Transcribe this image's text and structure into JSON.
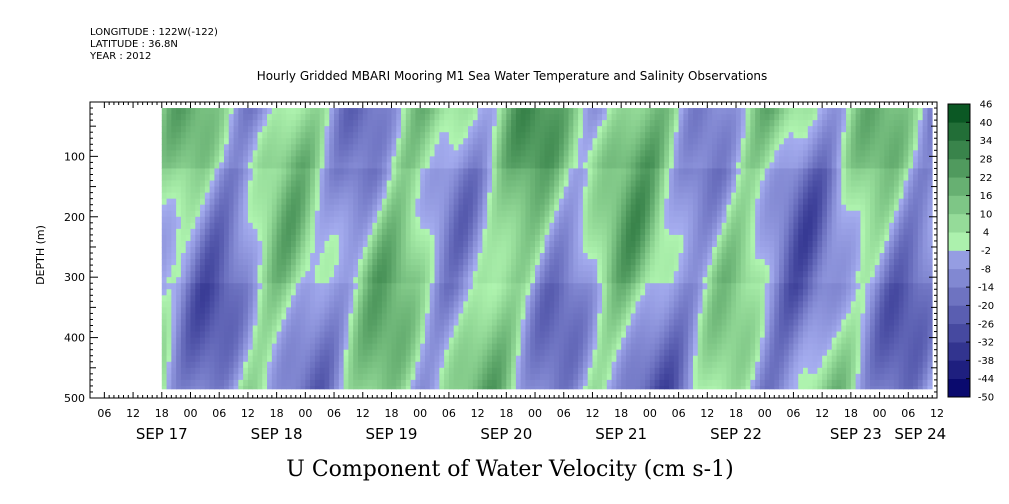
{
  "header": {
    "longitude": "LONGITUDE : 122W(-122)",
    "latitude": "LATITUDE : 36.8N",
    "year": "YEAR : 2012"
  },
  "chart_data": {
    "type": "heatmap",
    "title": "Hourly Gridded MBARI Mooring M1 Sea Water Temperature and Salinity Observations",
    "xlabel": "",
    "ylabel": "DEPTH (m)",
    "footer_label": "U Component of Water Velocity (cm s-1)",
    "x_start": "2012-09-16T21:00",
    "x_end": "2012-09-24T06:00",
    "data_x_start": "2012-09-17T12:00",
    "data_x_end": "2012-09-24T05:00",
    "ylim": [
      500,
      10
    ],
    "y_ticks": [
      100,
      200,
      300,
      400,
      500
    ],
    "y_tick_labels": [
      "100",
      "200",
      "300",
      "400",
      "500"
    ],
    "data_depth_range": [
      20,
      485
    ],
    "hour_labels": [
      "06",
      "12",
      "18",
      "00",
      "06",
      "12",
      "18",
      "00",
      "06",
      "12",
      "18",
      "00",
      "06",
      "12",
      "18",
      "00",
      "06",
      "12",
      "18",
      "00",
      "06",
      "12",
      "18",
      "00",
      "06",
      "12",
      "18",
      "00",
      "06",
      "12",
      "18",
      "00"
    ],
    "day_labels": [
      "SEP 17",
      "SEP 18",
      "SEP 19",
      "SEP 20",
      "SEP 21",
      "SEP 22",
      "SEP 23",
      "SEP 24"
    ],
    "colorbar": {
      "levels": [
        -50,
        -44,
        -38,
        -32,
        -26,
        -20,
        -14,
        -8,
        -2,
        4,
        10,
        16,
        22,
        28,
        34,
        40,
        46
      ],
      "level_labels": [
        "-50",
        "-44",
        "-38",
        "-32",
        "-26",
        "-20",
        "-14",
        "-8",
        "-2",
        "4",
        "10",
        "16",
        "22",
        "28",
        "34",
        "40",
        "46"
      ],
      "color_low": "#000066",
      "color_mid_neg": "#a6aef0",
      "color_mid_pos": "#b0f5b0",
      "color_high": "#004d1a"
    },
    "colors": {
      "negative_dominant": "#8f98ec",
      "positive_dominant": "#3ee866"
    }
  }
}
